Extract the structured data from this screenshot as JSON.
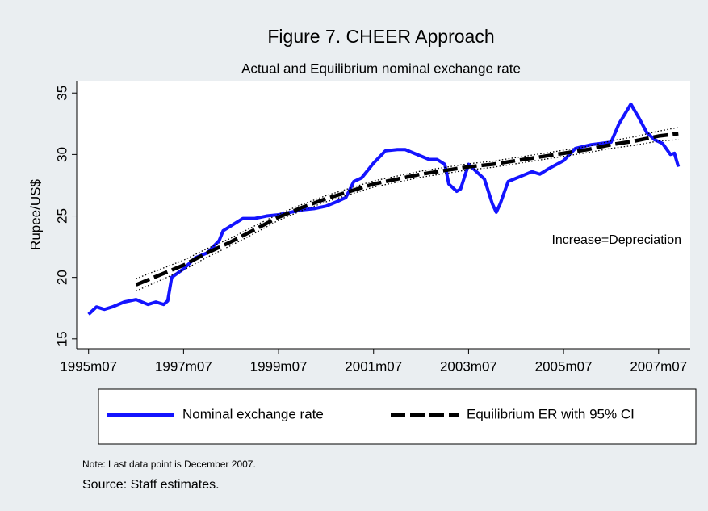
{
  "chart_data": {
    "type": "line",
    "title": "Figure 7. CHEER Approach",
    "subtitle": "Actual and Equilibrium nominal exchange rate",
    "ylabel": "Rupee/US$",
    "annotation": "Increase=Depreciation",
    "notes": [
      "Note: Last data point is December 2007.",
      "Source: Staff estimates."
    ],
    "xlim": [
      "1995m04",
      "2008m03"
    ],
    "xticks": [
      "1995m07",
      "1997m07",
      "1999m07",
      "2001m07",
      "2003m07",
      "2005m07",
      "2007m07"
    ],
    "ylim": [
      14.2,
      36
    ],
    "yticks": [
      15,
      20,
      25,
      30,
      35
    ],
    "grid": false,
    "legend": "bottom",
    "series": [
      {
        "name": "Nominal exchange rate",
        "color": "#1414ff",
        "style": "solid",
        "x": [
          "1995m07",
          "1995m09",
          "1995m11",
          "1996m01",
          "1996m04",
          "1996m07",
          "1996m10",
          "1996m12",
          "1997m02",
          "1997m03",
          "1997m04",
          "1997m07",
          "1997m10",
          "1998m01",
          "1998m04",
          "1998m05",
          "1998m07",
          "1998m10",
          "1999m01",
          "1999m04",
          "1999m07",
          "1999m10",
          "2000m01",
          "2000m04",
          "2000m07",
          "2000m10",
          "2000m12",
          "2001m02",
          "2001m04",
          "2001m07",
          "2001m10",
          "2002m01",
          "2002m03",
          "2002m06",
          "2002m09",
          "2002m11",
          "2003m01",
          "2003m02",
          "2003m04",
          "2003m05",
          "2003m07",
          "2003m09",
          "2003m11",
          "2004m01",
          "2004m02",
          "2004m03",
          "2004m05",
          "2004m08",
          "2004m11",
          "2005m01",
          "2005m03",
          "2005m07",
          "2005m10",
          "2006m02",
          "2006m07",
          "2006m09",
          "2006m12",
          "2007m02",
          "2007m04",
          "2007m06",
          "2007m08",
          "2007m10",
          "2007m11",
          "2007m12"
        ],
        "values": [
          17.0,
          17.6,
          17.4,
          17.6,
          18.0,
          18.2,
          17.8,
          18.0,
          17.8,
          18.1,
          20.0,
          20.7,
          21.6,
          22.0,
          23.0,
          23.8,
          24.2,
          24.8,
          24.8,
          25.0,
          25.1,
          25.3,
          25.5,
          25.6,
          25.8,
          26.2,
          26.5,
          27.8,
          28.1,
          29.3,
          30.3,
          30.4,
          30.4,
          30.0,
          29.6,
          29.6,
          29.2,
          27.6,
          27.0,
          27.2,
          29.2,
          28.6,
          28.0,
          26.0,
          25.3,
          26.0,
          27.8,
          28.2,
          28.6,
          28.4,
          28.8,
          29.5,
          30.5,
          30.8,
          31.0,
          32.5,
          34.1,
          33.0,
          31.8,
          31.2,
          30.9,
          30.0,
          30.1,
          29.0
        ]
      },
      {
        "name": "Equilibrium ER with 95% CI",
        "color": "#000000",
        "style": "dashed",
        "x": [
          "1996m07",
          "1997m01",
          "1997m07",
          "1998m01",
          "1998m07",
          "1999m01",
          "1999m07",
          "2000m01",
          "2000m07",
          "2001m01",
          "2001m07",
          "2002m01",
          "2002m07",
          "2003m01",
          "2003m07",
          "2004m01",
          "2004m07",
          "2005m01",
          "2005m07",
          "2006m01",
          "2006m07",
          "2007m01",
          "2007m07",
          "2007m12"
        ],
        "values": [
          19.4,
          20.2,
          21.0,
          22.0,
          22.9,
          23.9,
          24.9,
          25.7,
          26.4,
          27.0,
          27.6,
          28.0,
          28.4,
          28.7,
          29.0,
          29.2,
          29.5,
          29.8,
          30.1,
          30.4,
          30.8,
          31.1,
          31.5,
          31.7
        ]
      },
      {
        "color": "#000000",
        "style": "dotted",
        "x": [
          "1996m07",
          "1997m01",
          "1997m07",
          "1998m01",
          "1998m07",
          "1999m01",
          "1999m07",
          "2000m01",
          "2000m07",
          "2001m01",
          "2001m07",
          "2002m01",
          "2002m07",
          "2003m01",
          "2003m07",
          "2004m01",
          "2004m07",
          "2005m01",
          "2005m07",
          "2006m01",
          "2006m07",
          "2007m01",
          "2007m07",
          "2007m12"
        ],
        "values": [
          19.9,
          20.65,
          21.4,
          22.35,
          23.2,
          24.2,
          25.15,
          25.95,
          26.65,
          27.25,
          27.85,
          28.25,
          28.65,
          28.95,
          29.25,
          29.45,
          29.75,
          30.05,
          30.35,
          30.65,
          31.1,
          31.45,
          31.9,
          32.2
        ]
      },
      {
        "color": "#000000",
        "style": "dotted",
        "x": [
          "1996m07",
          "1997m01",
          "1997m07",
          "1998m01",
          "1998m07",
          "1999m01",
          "1999m07",
          "2000m01",
          "2000m07",
          "2001m01",
          "2001m07",
          "2002m01",
          "2002m07",
          "2003m01",
          "2003m07",
          "2004m01",
          "2004m07",
          "2005m01",
          "2005m07",
          "2006m01",
          "2006m07",
          "2007m01",
          "2007m07",
          "2007m12"
        ],
        "values": [
          18.9,
          19.75,
          20.6,
          21.65,
          22.6,
          23.6,
          24.65,
          25.45,
          26.15,
          26.75,
          27.35,
          27.75,
          28.15,
          28.45,
          28.75,
          28.95,
          29.25,
          29.55,
          29.85,
          30.15,
          30.5,
          30.75,
          31.1,
          31.2
        ]
      }
    ]
  }
}
